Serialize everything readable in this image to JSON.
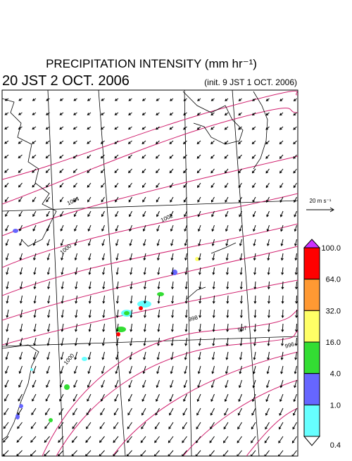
{
  "header": {
    "title": "PRECIPITATION INTENSITY (mm hr⁻¹)",
    "valid_time": "20 JST 2 OCT. 2006",
    "init_time": "(init. 9 JST 1 OCT. 2006)"
  },
  "wind_scale": {
    "label": "20 m s⁻¹"
  },
  "isobar_labels": [
    "1004",
    "1002",
    "1000",
    "1000",
    "998",
    "997",
    "996"
  ],
  "colorbar": {
    "levels": [
      {
        "value": 100,
        "label": "100.0"
      },
      {
        "value": 64,
        "label": "64.0"
      },
      {
        "value": 32,
        "label": "32.0"
      },
      {
        "value": 16,
        "label": "16.0"
      },
      {
        "value": 4,
        "label": "4.0"
      },
      {
        "value": 1,
        "label": "1.0"
      },
      {
        "value": 0.4,
        "label": "0.4"
      }
    ],
    "colors": [
      "#ff0000",
      "#ff9933",
      "#ffff66",
      "#33dd33",
      "#6666ff",
      "#66ffff"
    ],
    "over_color": "#cc33ff",
    "under_color": "#ffffff"
  }
}
